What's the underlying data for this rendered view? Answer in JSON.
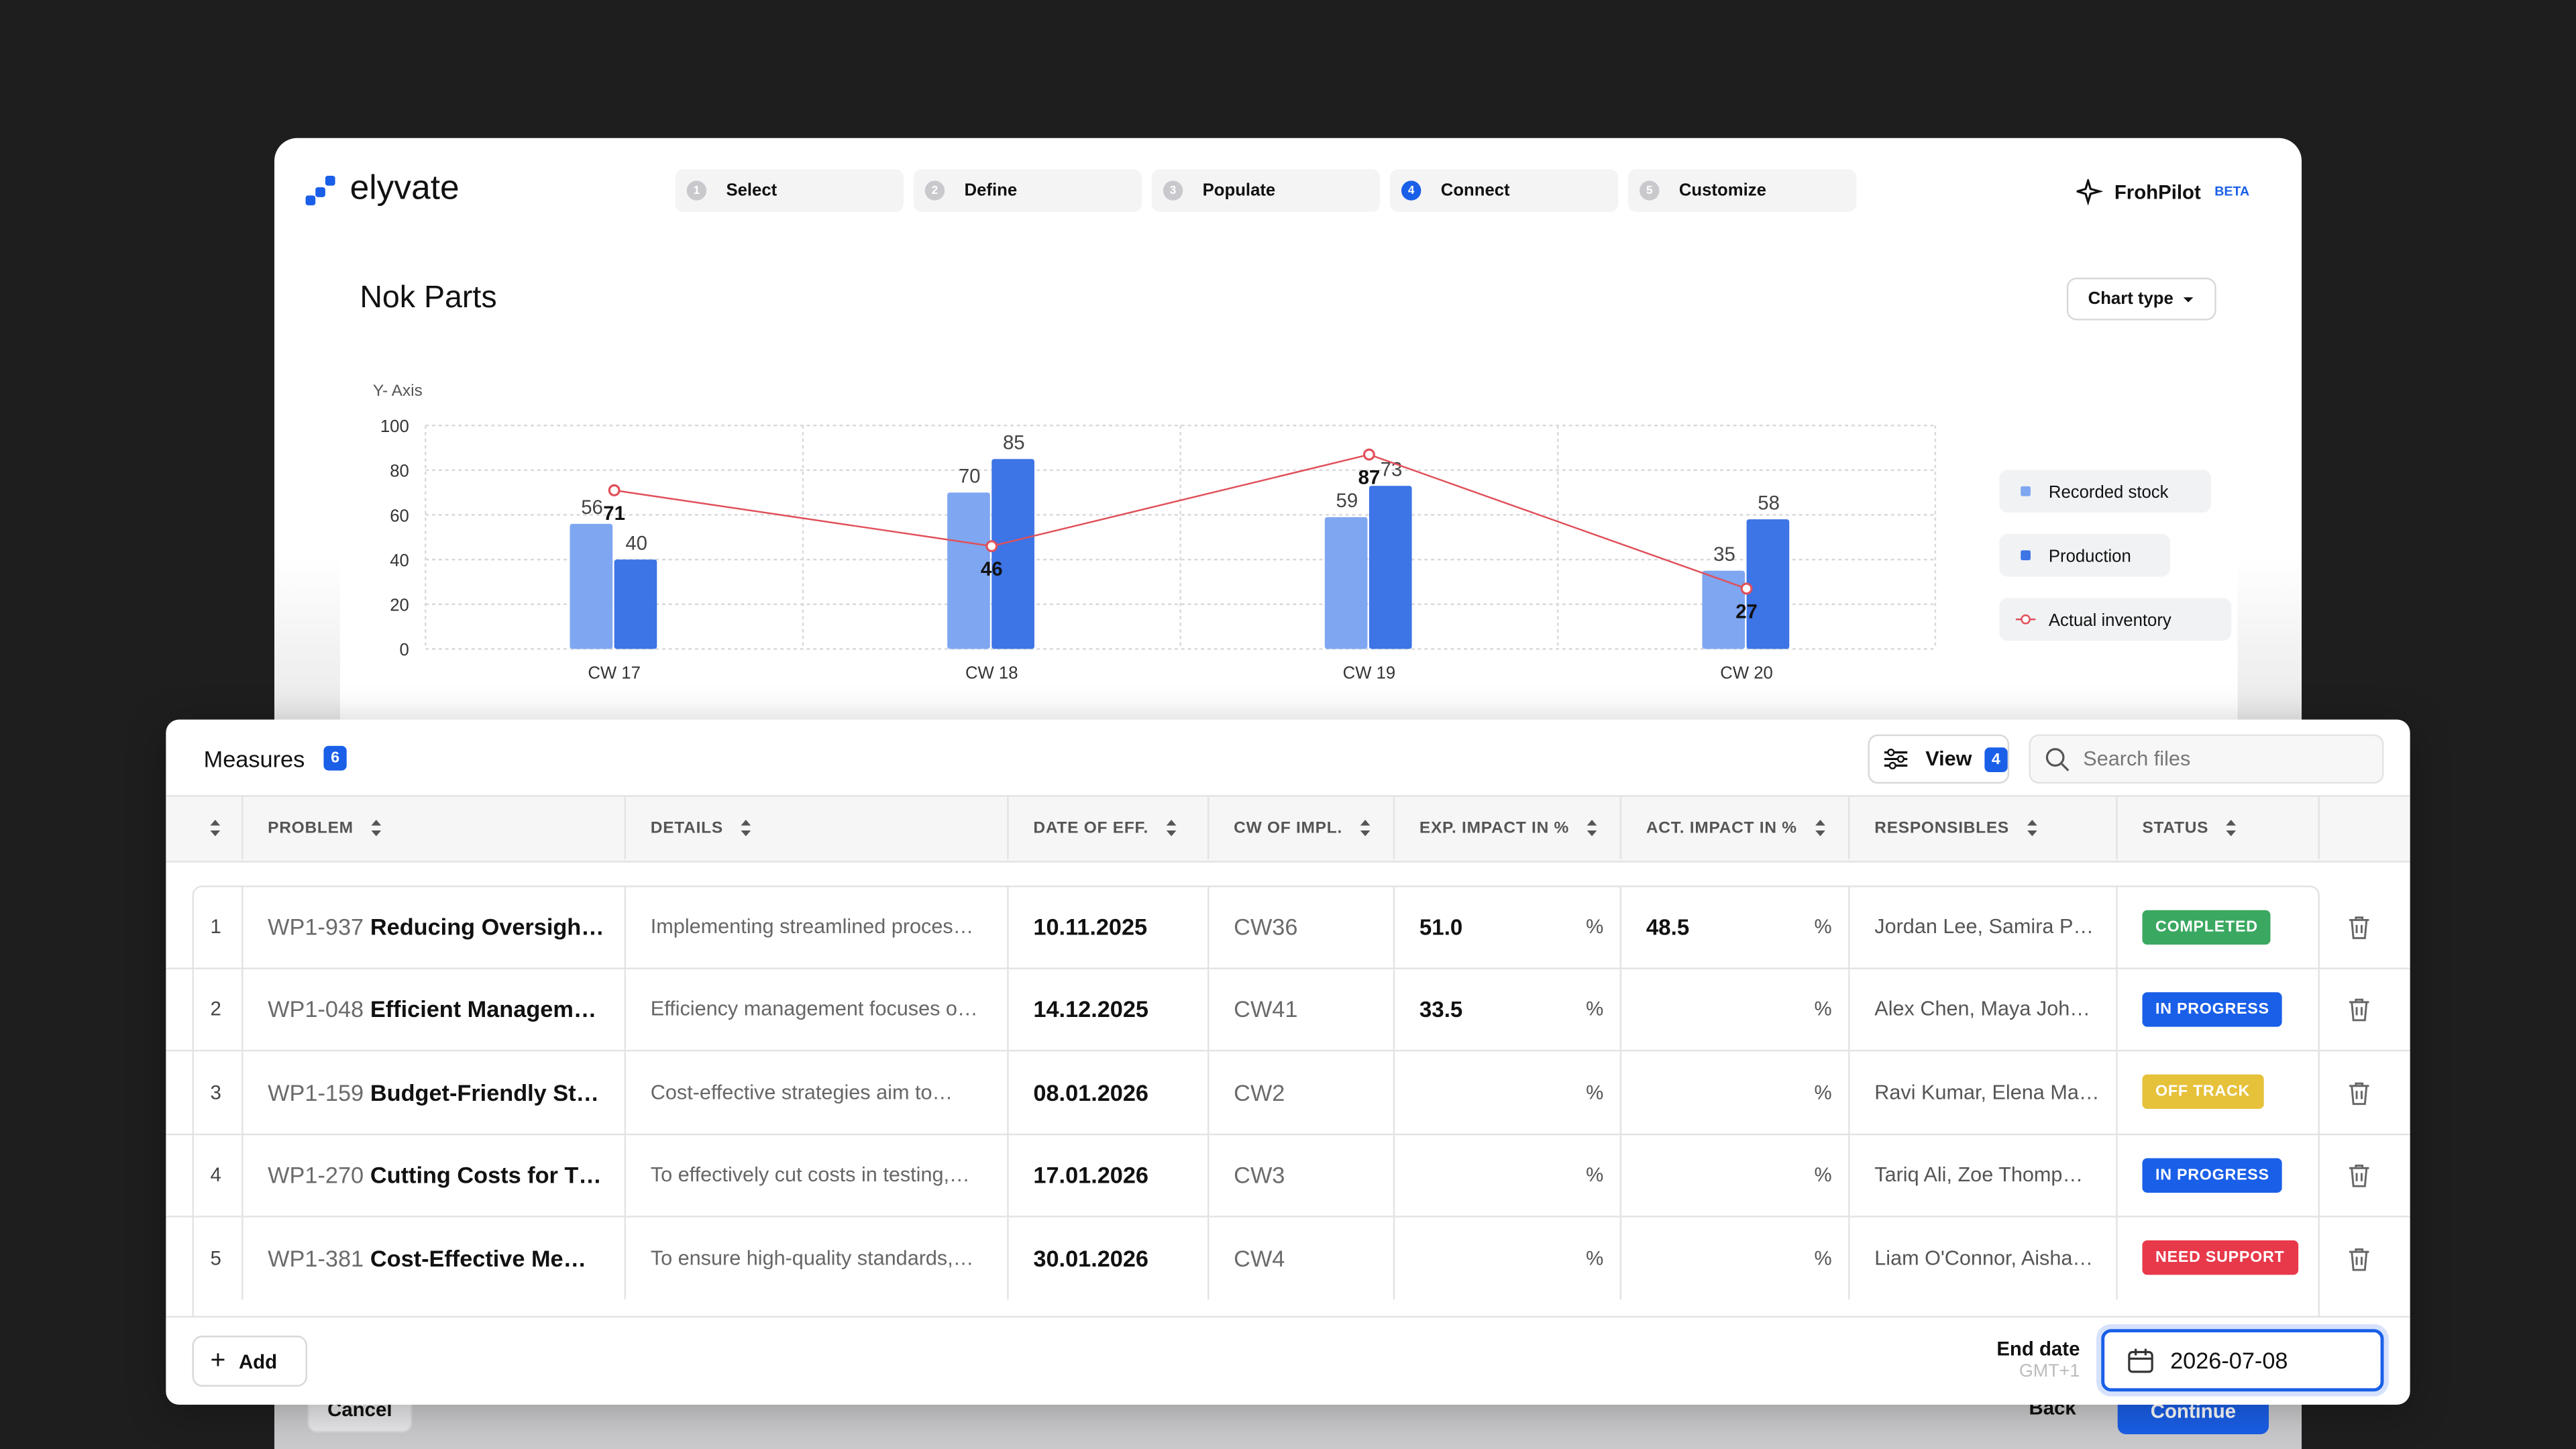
{
  "header": {
    "logo": "elyvate",
    "steps": [
      {
        "number": 1,
        "label": "Select"
      },
      {
        "number": 2,
        "label": "Define"
      },
      {
        "number": 3,
        "label": "Populate"
      },
      {
        "number": 4,
        "label": "Connect"
      },
      {
        "number": 5,
        "label": "Customize"
      }
    ],
    "active_step": 4,
    "assistant": "FrohPilot",
    "assistant_badge": "BETA"
  },
  "chart_button": "Chart type",
  "chart_data": {
    "type": "bar",
    "title": "Nok Parts",
    "y_axis_label": "Y- Axis",
    "categories": [
      "CW 17",
      "CW 18",
      "CW 19",
      "CW 20"
    ],
    "series": [
      {
        "name": "Recorded stock",
        "color": "#7fa6f0",
        "values": [
          56,
          70,
          59,
          35
        ]
      },
      {
        "name": "Production",
        "color": "#3d74e6",
        "values": [
          40,
          85,
          73,
          58
        ]
      },
      {
        "name": "Actual inventory",
        "type": "line",
        "color": "#e0505a",
        "values": [
          71,
          46,
          87,
          27
        ]
      }
    ],
    "ylim": [
      0,
      100
    ],
    "yticks": [
      0,
      20,
      40,
      60,
      80,
      100
    ],
    "grid": true,
    "legend": "right"
  },
  "measures": {
    "title": "Measures",
    "count": 6,
    "view_button": "View",
    "view_count": 4,
    "search_placeholder": "Search files"
  },
  "table": {
    "columns": [
      "PROBLEM",
      "DETAILS",
      "DATE OF EFF.",
      "CW OF IMPL.",
      "EXP. IMPACT IN %",
      "ACT. IMPACT IN %",
      "RESPONSIBLES",
      "STATUS"
    ],
    "percent_sign": "%",
    "status_colors": {
      "COMPLETED": "#3aa860",
      "IN PROGRESS": "#1a5fe8",
      "OFF TRACK": "#e6c13a",
      "NEED SUPPORT": "#e8394a"
    },
    "rows": [
      {
        "number": 1,
        "id": "WP1-937",
        "title": "Reducing Oversigh…",
        "details": "Implementing streamlined proces…",
        "date": "10.11.2025",
        "cw": "CW36",
        "exp_impact": "51.0",
        "act_impact": "48.5",
        "responsibles": "Jordan Lee, Samira P…",
        "status": "COMPLETED"
      },
      {
        "number": 2,
        "id": "WP1-048",
        "title": "Efficient Managem…",
        "details": "Efficiency management focuses o…",
        "date": "14.12.2025",
        "cw": "CW41",
        "exp_impact": "33.5",
        "act_impact": null,
        "responsibles": "Alex Chen, Maya Joh…",
        "status": "IN PROGRESS"
      },
      {
        "number": 3,
        "id": "WP1-159",
        "title": "Budget-Friendly St…",
        "details": "Cost-effective strategies aim to…",
        "date": "08.01.2026",
        "cw": "CW2",
        "exp_impact": null,
        "act_impact": null,
        "responsibles": "Ravi Kumar, Elena Ma…",
        "status": "OFF TRACK"
      },
      {
        "number": 4,
        "id": "WP1-270",
        "title": "Cutting Costs for T…",
        "details": "To effectively cut costs in testing,…",
        "date": "17.01.2026",
        "cw": "CW3",
        "exp_impact": null,
        "act_impact": null,
        "responsibles": "Tariq Ali, Zoe Thomp…",
        "status": "IN PROGRESS"
      },
      {
        "number": 5,
        "id": "WP1-381",
        "title": "Cost-Effective Me…",
        "details": "To ensure high-quality standards,…",
        "date": "30.01.2026",
        "cw": "CW4",
        "exp_impact": null,
        "act_impact": null,
        "responsibles": "Liam O'Connor, Aisha…",
        "status": "NEED SUPPORT"
      }
    ]
  },
  "footer": {
    "add_button": "Add",
    "end_date_label": "End date",
    "timezone": "GMT+1",
    "end_date": "2026-07-08",
    "cancel_button": "Cancel",
    "back_button": "Back",
    "continue_button": "Continue"
  }
}
